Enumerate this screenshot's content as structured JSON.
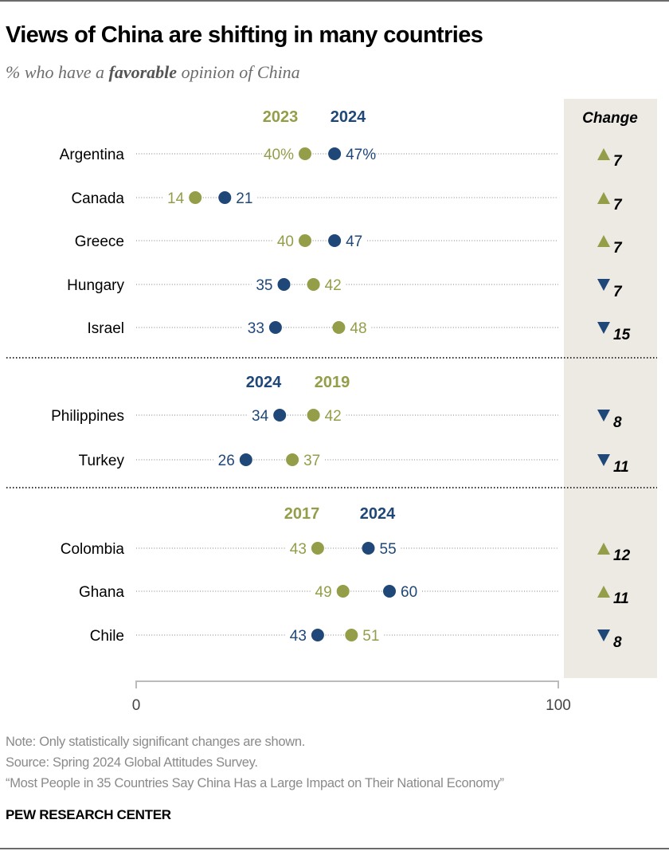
{
  "title": "Views of China are shifting in many countries",
  "subtitle": {
    "pre": "% who have a ",
    "bold": "favorable",
    "post": " opinion of China"
  },
  "change_header": "Change",
  "colors": {
    "green": "#949d48",
    "blue": "#1f4778",
    "panel": "#edeae4",
    "axis": "#bbbbbb",
    "dots": "#9a9a9a"
  },
  "notes": [
    "Note: Only statistically significant changes are shown.",
    "Source: Spring 2024 Global Attitudes Survey.",
    "“Most People in 35 Countries Say China Has a Large Impact on Their National Economy”"
  ],
  "brand": "PEW RESEARCH CENTER",
  "chart_data": {
    "type": "dot-plot",
    "title": "Views of China are shifting in many countries",
    "subtitle": "% who have a favorable opinion of China",
    "xlim": [
      0,
      100
    ],
    "x_ticks": [
      "0",
      "100"
    ],
    "groups": [
      {
        "legend": [
          {
            "label": "2023",
            "color": "green"
          },
          {
            "label": "2024",
            "color": "blue"
          }
        ],
        "rows": [
          {
            "country": "Argentina",
            "green": 40,
            "blue": 47,
            "green_label": "40%",
            "blue_label": "47%",
            "change": 7,
            "direction": "up"
          },
          {
            "country": "Canada",
            "green": 14,
            "blue": 21,
            "green_label": "14",
            "blue_label": "21",
            "change": 7,
            "direction": "up"
          },
          {
            "country": "Greece",
            "green": 40,
            "blue": 47,
            "green_label": "40",
            "blue_label": "47",
            "change": 7,
            "direction": "up"
          },
          {
            "country": "Hungary",
            "green": 42,
            "blue": 35,
            "green_label": "42",
            "blue_label": "35",
            "change": 7,
            "direction": "down"
          },
          {
            "country": "Israel",
            "green": 48,
            "blue": 33,
            "green_label": "48",
            "blue_label": "33",
            "change": 15,
            "direction": "down"
          }
        ]
      },
      {
        "legend": [
          {
            "label": "2024",
            "color": "blue"
          },
          {
            "label": "2019",
            "color": "green"
          }
        ],
        "rows": [
          {
            "country": "Philippines",
            "green": 42,
            "blue": 34,
            "green_label": "42",
            "blue_label": "34",
            "change": 8,
            "direction": "down"
          },
          {
            "country": "Turkey",
            "green": 37,
            "blue": 26,
            "green_label": "37",
            "blue_label": "26",
            "change": 11,
            "direction": "down"
          }
        ]
      },
      {
        "legend": [
          {
            "label": "2017",
            "color": "green"
          },
          {
            "label": "2024",
            "color": "blue"
          }
        ],
        "rows": [
          {
            "country": "Colombia",
            "green": 43,
            "blue": 55,
            "green_label": "43",
            "blue_label": "55",
            "change": 12,
            "direction": "up"
          },
          {
            "country": "Ghana",
            "green": 49,
            "blue": 60,
            "green_label": "49",
            "blue_label": "60",
            "change": 11,
            "direction": "up"
          },
          {
            "country": "Chile",
            "green": 51,
            "blue": 43,
            "green_label": "51",
            "blue_label": "43",
            "change": 8,
            "direction": "down"
          }
        ]
      }
    ]
  }
}
